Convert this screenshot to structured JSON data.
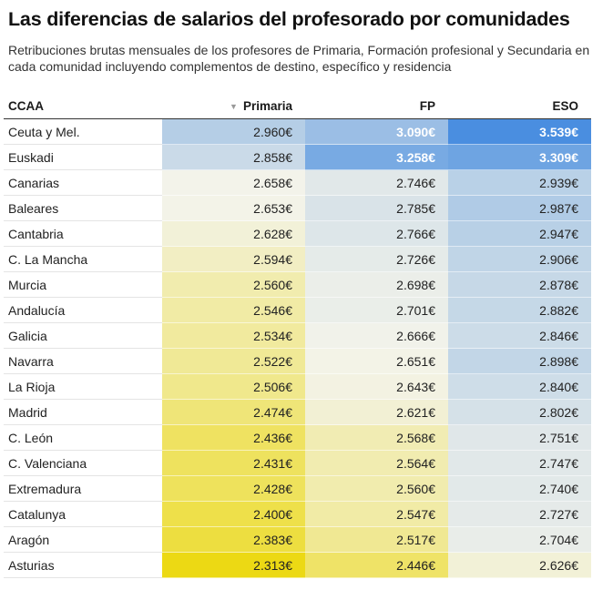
{
  "title": "Las diferencias de salarios del profesorado por comunidades",
  "subtitle": "Retribuciones brutas mensuales de los profesores de Primaria, Formación profesional y Secundaria en cada comunidad incluyendo complementos de destino, específico y residencia",
  "colors": {
    "low": "#ecd914",
    "mid": "#f3f3ea",
    "high": "#4a8ee0"
  },
  "chart_data": {
    "type": "table",
    "sort_icon": "triangle-down-icon",
    "columns": [
      "CCAA",
      "Primaria",
      "FP",
      "ESO"
    ],
    "rows": [
      {
        "ccaa": "Ceuta y Mel.",
        "primaria": 2960,
        "fp": 3090,
        "eso": 3539
      },
      {
        "ccaa": "Euskadi",
        "primaria": 2858,
        "fp": 3258,
        "eso": 3309
      },
      {
        "ccaa": "Canarias",
        "primaria": 2658,
        "fp": 2746,
        "eso": 2939
      },
      {
        "ccaa": "Baleares",
        "primaria": 2653,
        "fp": 2785,
        "eso": 2987
      },
      {
        "ccaa": "Cantabria",
        "primaria": 2628,
        "fp": 2766,
        "eso": 2947
      },
      {
        "ccaa": "C. La Mancha",
        "primaria": 2594,
        "fp": 2726,
        "eso": 2906
      },
      {
        "ccaa": "Murcia",
        "primaria": 2560,
        "fp": 2698,
        "eso": 2878
      },
      {
        "ccaa": "Andalucía",
        "primaria": 2546,
        "fp": 2701,
        "eso": 2882
      },
      {
        "ccaa": "Galicia",
        "primaria": 2534,
        "fp": 2666,
        "eso": 2846
      },
      {
        "ccaa": "Navarra",
        "primaria": 2522,
        "fp": 2651,
        "eso": 2898
      },
      {
        "ccaa": "La Rioja",
        "primaria": 2506,
        "fp": 2643,
        "eso": 2840
      },
      {
        "ccaa": "Madrid",
        "primaria": 2474,
        "fp": 2621,
        "eso": 2802
      },
      {
        "ccaa": "C. León",
        "primaria": 2436,
        "fp": 2568,
        "eso": 2751
      },
      {
        "ccaa": "C. Valenciana",
        "primaria": 2431,
        "fp": 2564,
        "eso": 2747
      },
      {
        "ccaa": "Extremadura",
        "primaria": 2428,
        "fp": 2560,
        "eso": 2740
      },
      {
        "ccaa": "Catalunya",
        "primaria": 2400,
        "fp": 2547,
        "eso": 2727
      },
      {
        "ccaa": "Aragón",
        "primaria": 2383,
        "fp": 2517,
        "eso": 2704
      },
      {
        "ccaa": "Asturias",
        "primaria": 2313,
        "fp": 2446,
        "eso": 2626
      }
    ]
  }
}
